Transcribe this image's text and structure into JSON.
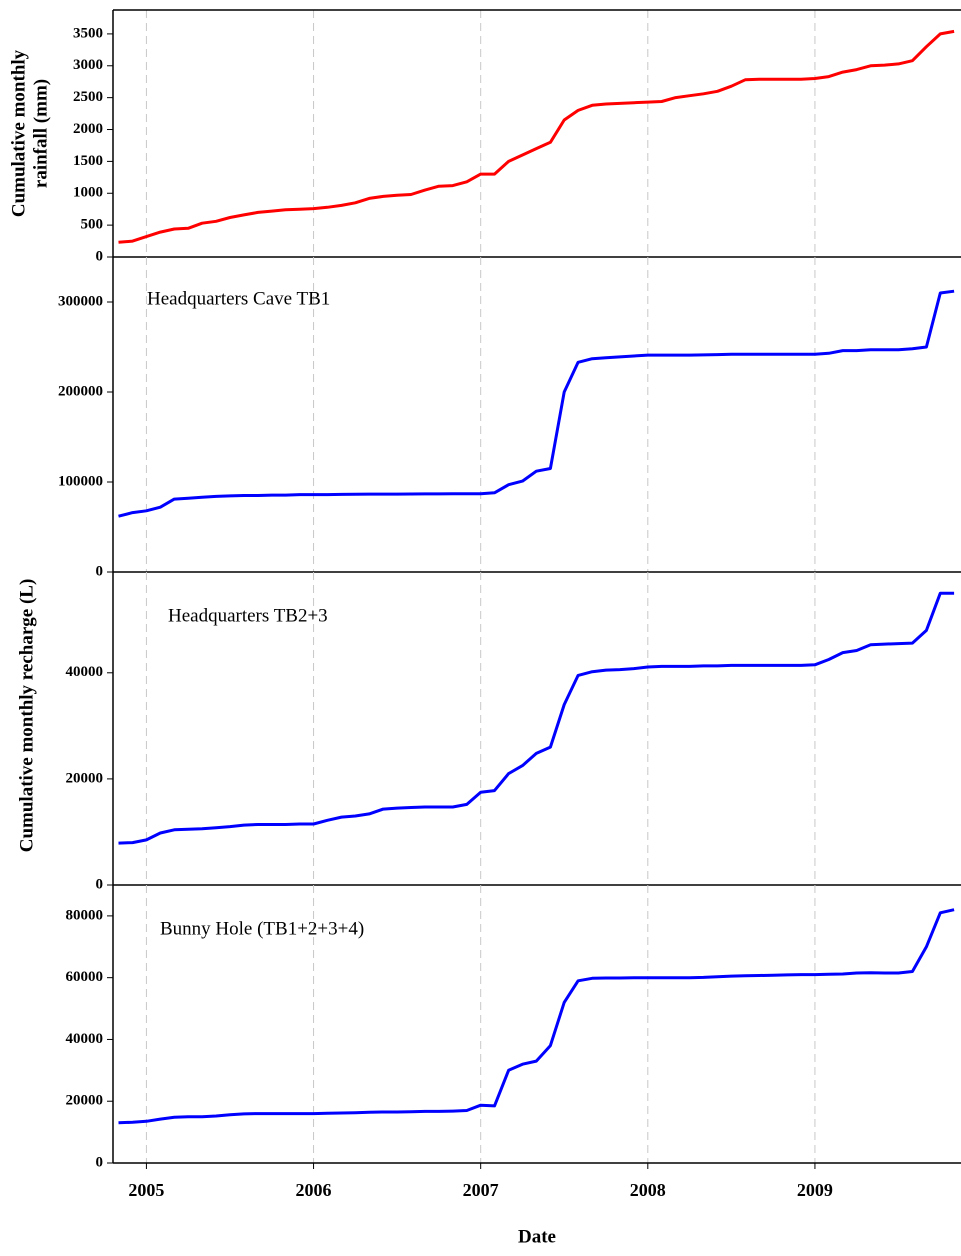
{
  "chart_data": [
    {
      "type": "line",
      "ylabel": [
        "Cumulative monthly",
        "rainfall (mm)"
      ],
      "color": "#ff0000",
      "xlim": [
        2004.8,
        2009.874
      ],
      "xticks": [
        2005,
        2006,
        2007,
        2008,
        2009
      ],
      "ylim": [
        0,
        3875
      ],
      "yticks": [
        0,
        500,
        1000,
        1500,
        2000,
        2500,
        3000,
        3500
      ],
      "x": [
        2004.833,
        2004.917,
        2005,
        2005.083,
        2005.167,
        2005.25,
        2005.333,
        2005.417,
        2005.5,
        2005.583,
        2005.667,
        2005.75,
        2005.833,
        2005.917,
        2006,
        2006.083,
        2006.167,
        2006.25,
        2006.333,
        2006.417,
        2006.5,
        2006.583,
        2006.667,
        2006.75,
        2006.833,
        2006.917,
        2007,
        2007.083,
        2007.167,
        2007.25,
        2007.333,
        2007.417,
        2007.5,
        2007.583,
        2007.667,
        2007.75,
        2007.833,
        2007.917,
        2008,
        2008.083,
        2008.167,
        2008.25,
        2008.333,
        2008.417,
        2008.5,
        2008.583,
        2008.667,
        2008.75,
        2008.833,
        2008.917,
        2009,
        2009.083,
        2009.167,
        2009.25,
        2009.333,
        2009.417,
        2009.5,
        2009.583,
        2009.667,
        2009.75,
        2009.833
      ],
      "values": [
        230,
        250,
        320,
        390,
        440,
        450,
        530,
        560,
        620,
        660,
        700,
        720,
        740,
        750,
        760,
        780,
        810,
        850,
        920,
        950,
        970,
        980,
        1050,
        1110,
        1120,
        1180,
        1300,
        1300,
        1500,
        1600,
        1700,
        1800,
        2150,
        2300,
        2380,
        2400,
        2410,
        2420,
        2430,
        2440,
        2500,
        2530,
        2560,
        2600,
        2680,
        2780,
        2790,
        2790,
        2790,
        2790,
        2800,
        2830,
        2900,
        2940,
        3000,
        3010,
        3030,
        3080,
        3300,
        3500,
        3540
      ]
    },
    {
      "type": "line",
      "annotation": "Headquarters Cave TB1",
      "color": "#0000ff",
      "xlim": [
        2004.8,
        2009.874
      ],
      "xticks": [
        2005,
        2006,
        2007,
        2008,
        2009
      ],
      "ylim": [
        0,
        350000
      ],
      "yticks": [
        0,
        100000,
        200000,
        300000
      ],
      "x": [
        2004.833,
        2004.917,
        2005,
        2005.083,
        2005.167,
        2005.25,
        2005.333,
        2005.417,
        2005.5,
        2005.583,
        2005.667,
        2005.75,
        2005.833,
        2005.917,
        2006,
        2006.083,
        2006.167,
        2006.25,
        2006.333,
        2006.417,
        2006.5,
        2006.583,
        2006.667,
        2006.75,
        2006.833,
        2006.917,
        2007,
        2007.083,
        2007.167,
        2007.25,
        2007.333,
        2007.417,
        2007.5,
        2007.583,
        2007.667,
        2007.75,
        2007.833,
        2007.917,
        2008,
        2008.083,
        2008.167,
        2008.25,
        2008.333,
        2008.417,
        2008.5,
        2008.583,
        2008.667,
        2008.75,
        2008.833,
        2008.917,
        2009,
        2009.083,
        2009.167,
        2009.25,
        2009.333,
        2009.417,
        2009.5,
        2009.583,
        2009.667,
        2009.75,
        2009.833
      ],
      "values": [
        62000,
        66000,
        68000,
        72000,
        81000,
        82000,
        83000,
        84000,
        84500,
        85000,
        85000,
        85500,
        85500,
        86000,
        86000,
        86000,
        86200,
        86400,
        86500,
        86500,
        86600,
        86700,
        86800,
        86800,
        86900,
        87000,
        87000,
        88000,
        97000,
        101000,
        112000,
        115000,
        200000,
        233000,
        237000,
        238000,
        239000,
        240000,
        241000,
        241000,
        241000,
        241000,
        241200,
        241500,
        242000,
        242000,
        242000,
        242000,
        242000,
        242000,
        242000,
        243000,
        246000,
        246000,
        247000,
        247000,
        247000,
        248000,
        250000,
        310000,
        312000
      ]
    },
    {
      "type": "line",
      "annotation": "Headquarters TB2+3",
      "ylabel": [
        "Cumulative monthly recharge (L)"
      ],
      "color": "#0000ff",
      "xlim": [
        2004.8,
        2009.874
      ],
      "xticks": [
        2005,
        2006,
        2007,
        2008,
        2009
      ],
      "ylim": [
        0,
        59000
      ],
      "yticks": [
        0,
        20000,
        40000
      ],
      "x": [
        2004.833,
        2004.917,
        2005,
        2005.083,
        2005.167,
        2005.25,
        2005.333,
        2005.417,
        2005.5,
        2005.583,
        2005.667,
        2005.75,
        2005.833,
        2005.917,
        2006,
        2006.083,
        2006.167,
        2006.25,
        2006.333,
        2006.417,
        2006.5,
        2006.583,
        2006.667,
        2006.75,
        2006.833,
        2006.917,
        2007,
        2007.083,
        2007.167,
        2007.25,
        2007.333,
        2007.417,
        2007.5,
        2007.583,
        2007.667,
        2007.75,
        2007.833,
        2007.917,
        2008,
        2008.083,
        2008.167,
        2008.25,
        2008.333,
        2008.417,
        2008.5,
        2008.583,
        2008.667,
        2008.75,
        2008.833,
        2008.917,
        2009,
        2009.083,
        2009.167,
        2009.25,
        2009.333,
        2009.417,
        2009.5,
        2009.583,
        2009.667,
        2009.75,
        2009.833
      ],
      "values": [
        7900,
        8000,
        8500,
        9800,
        10400,
        10500,
        10600,
        10800,
        11000,
        11300,
        11400,
        11400,
        11400,
        11500,
        11500,
        12200,
        12800,
        13000,
        13400,
        14300,
        14500,
        14600,
        14700,
        14700,
        14700,
        15200,
        17500,
        17800,
        21000,
        22500,
        24800,
        26000,
        34000,
        39500,
        40200,
        40500,
        40600,
        40800,
        41100,
        41200,
        41200,
        41200,
        41300,
        41300,
        41400,
        41400,
        41400,
        41400,
        41400,
        41400,
        41500,
        42500,
        43800,
        44200,
        45300,
        45400,
        45500,
        45600,
        48000,
        55000,
        55000
      ]
    },
    {
      "type": "line",
      "annotation": "Bunny Hole (TB1+2+3+4)",
      "xlabel": "Date",
      "color": "#0000ff",
      "xlim": [
        2004.8,
        2009.874
      ],
      "xticks": [
        2005,
        2006,
        2007,
        2008,
        2009
      ],
      "ylim": [
        0,
        90000
      ],
      "yticks": [
        0,
        20000,
        40000,
        60000,
        80000
      ],
      "x": [
        2004.833,
        2004.917,
        2005,
        2005.083,
        2005.167,
        2005.25,
        2005.333,
        2005.417,
        2005.5,
        2005.583,
        2005.667,
        2005.75,
        2005.833,
        2005.917,
        2006,
        2006.083,
        2006.167,
        2006.25,
        2006.333,
        2006.417,
        2006.5,
        2006.583,
        2006.667,
        2006.75,
        2006.833,
        2006.917,
        2007,
        2007.083,
        2007.167,
        2007.25,
        2007.333,
        2007.417,
        2007.5,
        2007.583,
        2007.667,
        2007.75,
        2007.833,
        2007.917,
        2008,
        2008.083,
        2008.167,
        2008.25,
        2008.333,
        2008.417,
        2008.5,
        2008.583,
        2008.667,
        2008.75,
        2008.833,
        2008.917,
        2009,
        2009.083,
        2009.167,
        2009.25,
        2009.333,
        2009.417,
        2009.5,
        2009.583,
        2009.667,
        2009.75,
        2009.833
      ],
      "values": [
        13000,
        13200,
        13500,
        14200,
        14800,
        15000,
        15000,
        15200,
        15600,
        15900,
        16000,
        16000,
        16000,
        16000,
        16000,
        16100,
        16200,
        16300,
        16400,
        16500,
        16500,
        16600,
        16700,
        16700,
        16800,
        17000,
        18700,
        18500,
        30000,
        32000,
        33000,
        38000,
        52000,
        59000,
        59800,
        59900,
        59900,
        60000,
        60000,
        60000,
        60000,
        60000,
        60100,
        60300,
        60500,
        60600,
        60700,
        60800,
        60900,
        61000,
        61000,
        61100,
        61200,
        61500,
        61600,
        61500,
        61500,
        62000,
        70000,
        81000,
        82000
      ]
    }
  ]
}
